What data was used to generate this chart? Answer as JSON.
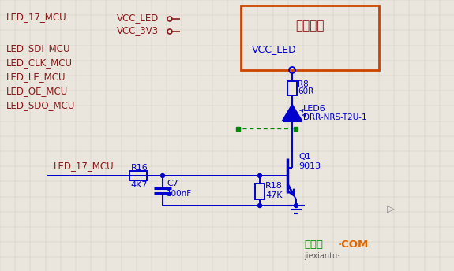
{
  "bg_color": "#eae6de",
  "blue": "#0000cc",
  "dark_red": "#8b1a1a",
  "green_dot": "#008800",
  "orange_box": "#cc4400",
  "wm_green": "#008800",
  "wm_orange": "#dd6600",
  "wm_gray": "#666666",
  "left_labels": [
    "LED_17_MCU",
    "LED_SDI_MCU",
    "LED_CLK_MCU",
    "LED_LE_MCU",
    "LED_OE_MCU",
    "LED_SDO_MCU"
  ],
  "vcc_labels": [
    "VCC_LED",
    "VCC_3V3"
  ],
  "box_title": "电压待定",
  "box_inner": "VCC_LED",
  "r8_name": "R8",
  "r8_val": "60R",
  "led_name": "LED6",
  "led_part": "DRR-NRS-T2U-1",
  "q1_name": "Q1",
  "q1_part": "9013",
  "r16_name": "R16",
  "r16_val": "4K7",
  "c7_name": "C7",
  "c7_val": "100nF",
  "r18_name": "R18",
  "r18_val": "47K",
  "net_label": "LED_17_MCU",
  "wm1": "接线图",
  "wm2": "·COM",
  "wm3": "jiexiantu·"
}
